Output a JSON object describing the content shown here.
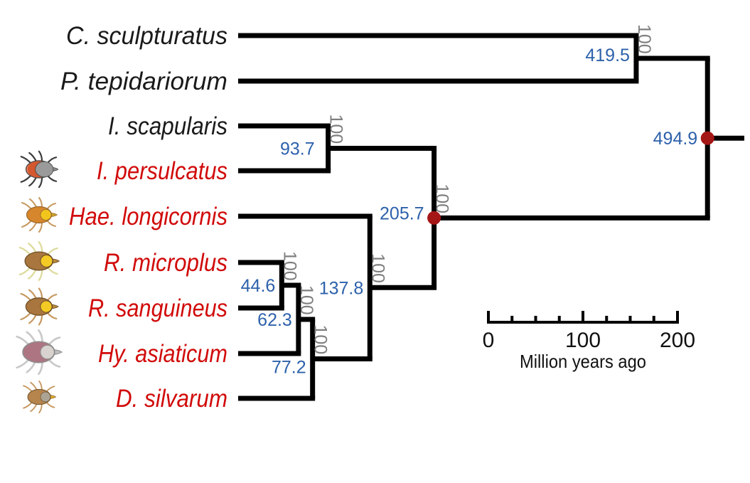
{
  "figure": {
    "background": "#ffffff",
    "branch_color": "#000000",
    "age_label_color": "#2d61ab",
    "bootstrap_label_color": "#7f7f7f",
    "node_dot_color": "#a51616",
    "tip_color_black": "#1a1a1a",
    "tip_color_red": "#d10a0a"
  },
  "species": [
    {
      "name": "C. sculpturatus",
      "color": "black",
      "icon": null
    },
    {
      "name": "P. tepidariorum",
      "color": "black",
      "icon": null
    },
    {
      "name": "I. scapularis",
      "color": "black",
      "icon": null
    },
    {
      "name": "I. persulcatus",
      "color": "red",
      "icon": {
        "name": "ixodes-persulcatus-tick",
        "body": "#d4572e",
        "crescent": "#ee9070",
        "scutum": "#9a9a9a",
        "legs": "#3c3c3c",
        "head": "#8f8f8f",
        "outline": "#4a4a4a",
        "size": 1.05,
        "scutumBig": true
      }
    },
    {
      "name": "Hae. longicornis",
      "color": "red",
      "icon": {
        "name": "haemaphysalis-longicornis-tick",
        "body": "#d6862c",
        "scutum": "#f2c51c",
        "legs": "#c79a62",
        "head": "#caa02a",
        "outline": "#9a6a30",
        "size": 1.0
      }
    },
    {
      "name": "R. microplus",
      "color": "red",
      "icon": {
        "name": "rhipicephalus-microplus-tick",
        "body": "#a8763e",
        "scutum": "#f4ca25",
        "legs": "#dedc9e",
        "head": "#b98a3c",
        "outline": "#6e4f28",
        "size": 1.12
      }
    },
    {
      "name": "R. sanguineus",
      "color": "red",
      "icon": {
        "name": "rhipicephalus-sanguineus-tick",
        "body": "#a8763e",
        "scutum": "#f4ca25",
        "legs": "#c79a62",
        "head": "#b98a3c",
        "outline": "#6e4f28",
        "size": 1.06
      }
    },
    {
      "name": "Hy. asiaticum",
      "color": "red",
      "icon": {
        "name": "hyalomma-asiaticum-tick",
        "body": "#ad7582",
        "scutum": "#d8d3ce",
        "legs": "#c9c9c9",
        "head": "#bdbdbd",
        "outline": "#8f8f8f",
        "size": 1.28
      }
    },
    {
      "name": "D. silvarum",
      "color": "red",
      "icon": {
        "name": "dermacentor-silvarum-tick",
        "body": "#b5854d",
        "scutum": "#aba394",
        "legs": "#c79a62",
        "head": "#e3b42a",
        "outline": "#7a5a30",
        "size": 0.92
      }
    }
  ],
  "chart_data": {
    "type": "phylogenetic-tree",
    "time_unit": "Million years ago",
    "tree": {
      "age": 494.9,
      "bootstrap": null,
      "dot": true,
      "children": [
        {
          "age": 419.5,
          "bootstrap": "100",
          "children": [
            {
              "tip": 0
            },
            {
              "tip": 1
            }
          ]
        },
        {
          "age": 205.7,
          "bootstrap": "100",
          "dot": true,
          "children": [
            {
              "age": 93.7,
              "bootstrap": "100",
              "children": [
                {
                  "tip": 2
                },
                {
                  "tip": 3
                }
              ]
            },
            {
              "age": 137.8,
              "bootstrap": "100",
              "children": [
                {
                  "tip": 4
                },
                {
                  "age": 77.2,
                  "bootstrap": "100",
                  "children": [
                    {
                      "age": 62.3,
                      "bootstrap": "100",
                      "children": [
                        {
                          "age": 44.6,
                          "bootstrap": "100",
                          "children": [
                            {
                              "tip": 5
                            },
                            {
                              "tip": 6
                            }
                          ]
                        },
                        {
                          "tip": 7
                        }
                      ]
                    },
                    {
                      "tip": 8
                    }
                  ]
                }
              ]
            }
          ]
        }
      ]
    }
  },
  "scale_bar": {
    "labels": [
      "0",
      "100",
      "200"
    ],
    "values": [
      0,
      100,
      200
    ],
    "minor_step_my": 25,
    "caption": "Million years ago"
  },
  "layout_hints": {
    "age_dy": {
      "77.2": 11,
      "205.7": -7,
      "419.5": -5
    },
    "age_dx": {
      "93.7": -10
    }
  }
}
